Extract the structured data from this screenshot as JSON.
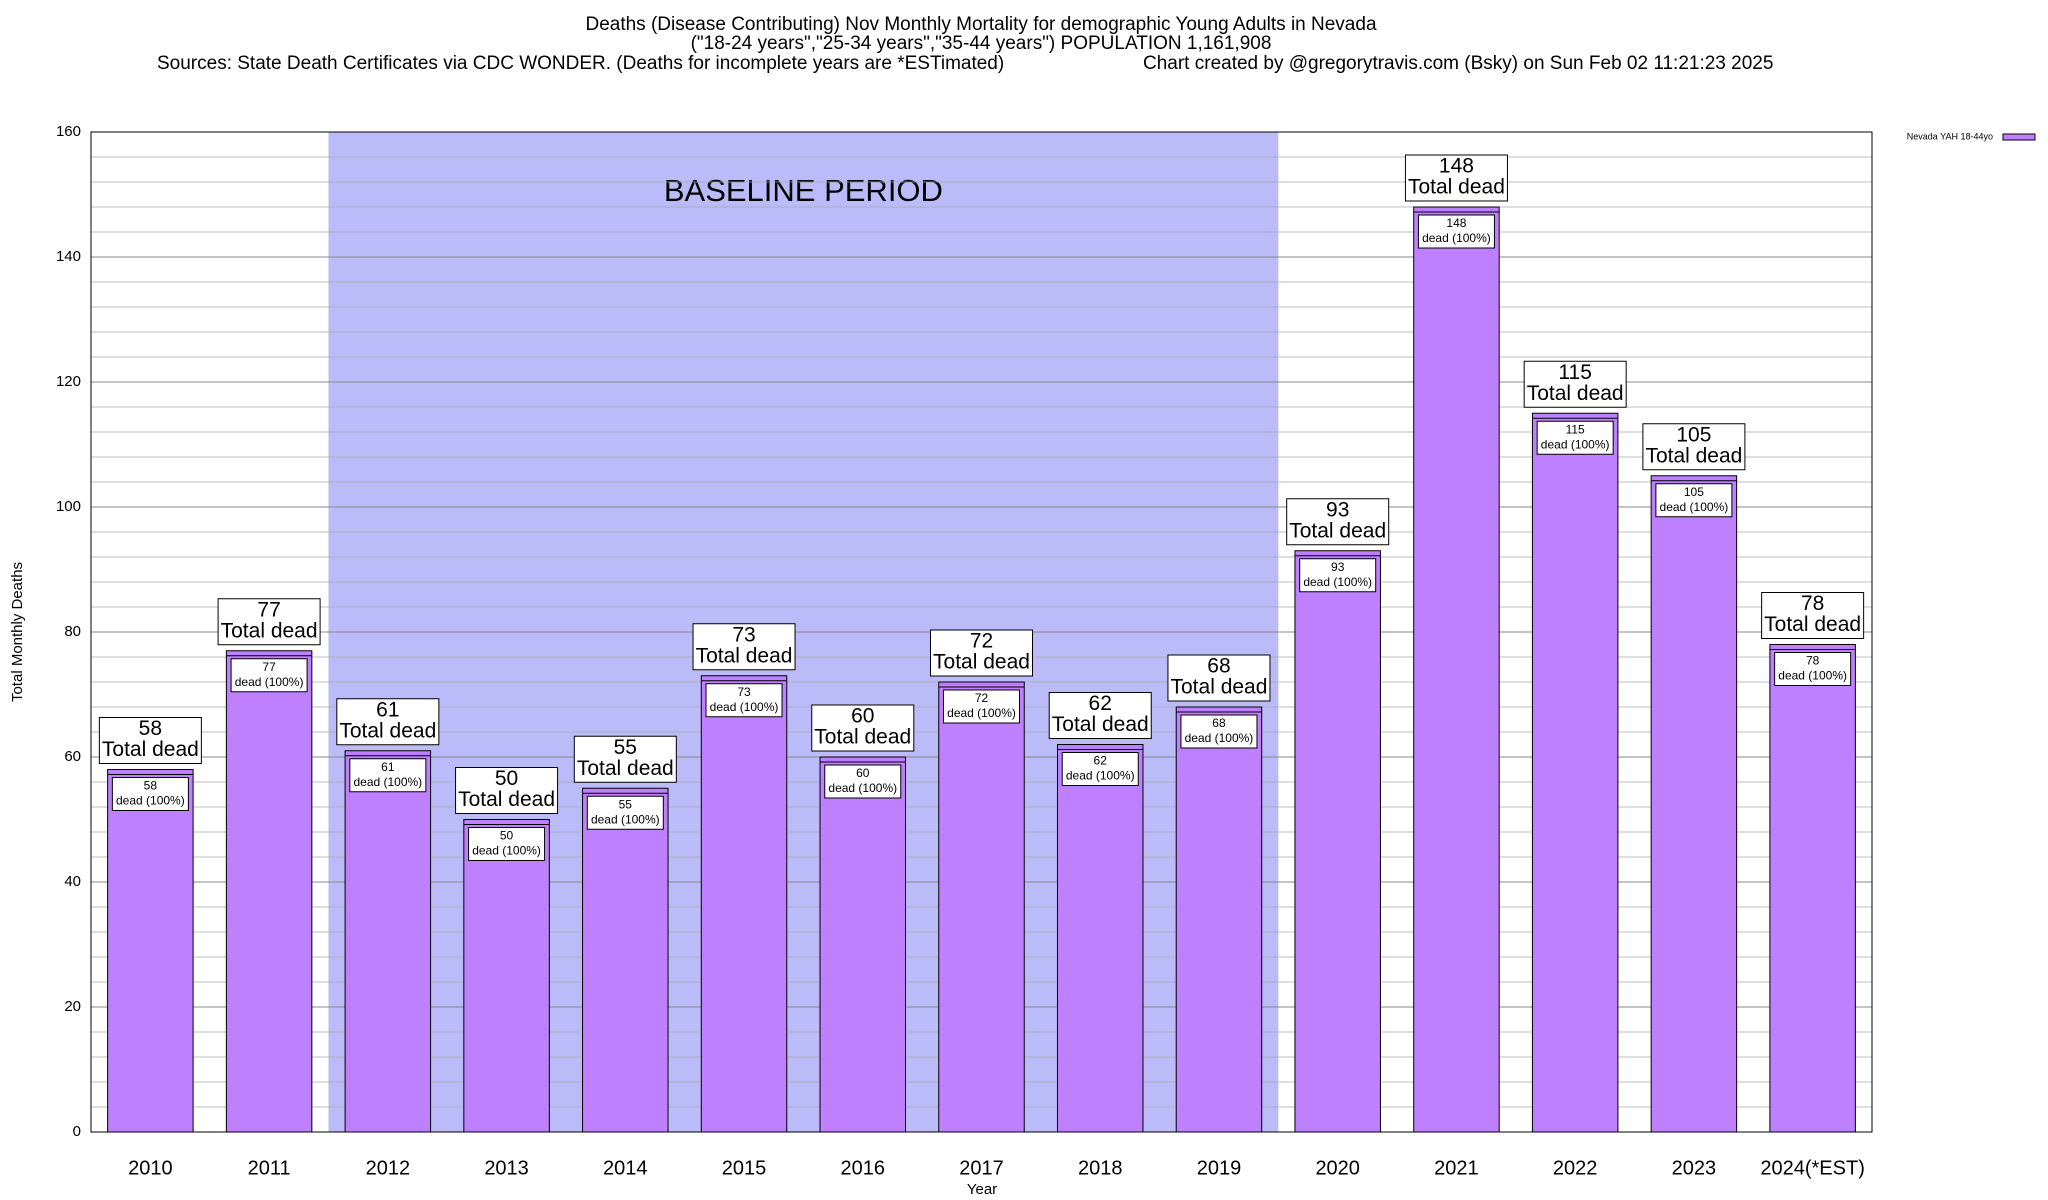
{
  "chart_data": {
    "type": "bar",
    "title": [
      "Deaths (Disease Contributing) Nov Monthly Mortality for demographic Young Adults in Nevada",
      "(\"18-24 years\",\"25-34 years\",\"35-44 years\") POPULATION 1,161,908"
    ],
    "subtitle": [
      "Sources: State Death Certificates via CDC WONDER. (Deaths for incomplete years are *ESTimated)",
      "Chart created by @gregorytravis.com (Bsky) on Sun Feb 02 11:21:23 2025"
    ],
    "x_label": "Year",
    "y_label": "Total Monthly Deaths",
    "categories": [
      "2010",
      "2011",
      "2012",
      "2013",
      "2014",
      "2015",
      "2016",
      "2017",
      "2018",
      "2019",
      "2020",
      "2021",
      "2022",
      "2023",
      "2024(*EST)"
    ],
    "series": [
      {
        "name": "Nevada YAH 18-44yo",
        "color": "#bf80ff",
        "values": [
          58,
          77,
          61,
          50,
          55,
          73,
          60,
          72,
          62,
          68,
          93,
          148,
          115,
          105,
          78
        ]
      }
    ],
    "total_label_text": "Total dead",
    "inner_label_text": "dead (100%)",
    "baseline": {
      "label": "BASELINE PERIOD",
      "start": "2012",
      "end": "2019",
      "color": "#bbbbf9"
    },
    "ylim": [
      0,
      160
    ],
    "yticks": [
      0,
      20,
      40,
      60,
      80,
      100,
      120,
      140,
      160
    ],
    "minor_yticks": [
      4,
      8,
      12,
      16,
      24,
      28,
      32,
      36,
      44,
      48,
      52,
      56,
      64,
      68,
      72,
      76,
      84,
      88,
      92,
      96,
      104,
      108,
      112,
      116,
      124,
      128,
      132,
      136,
      144,
      148,
      152,
      156
    ],
    "grid": true,
    "legend": "top-right"
  }
}
